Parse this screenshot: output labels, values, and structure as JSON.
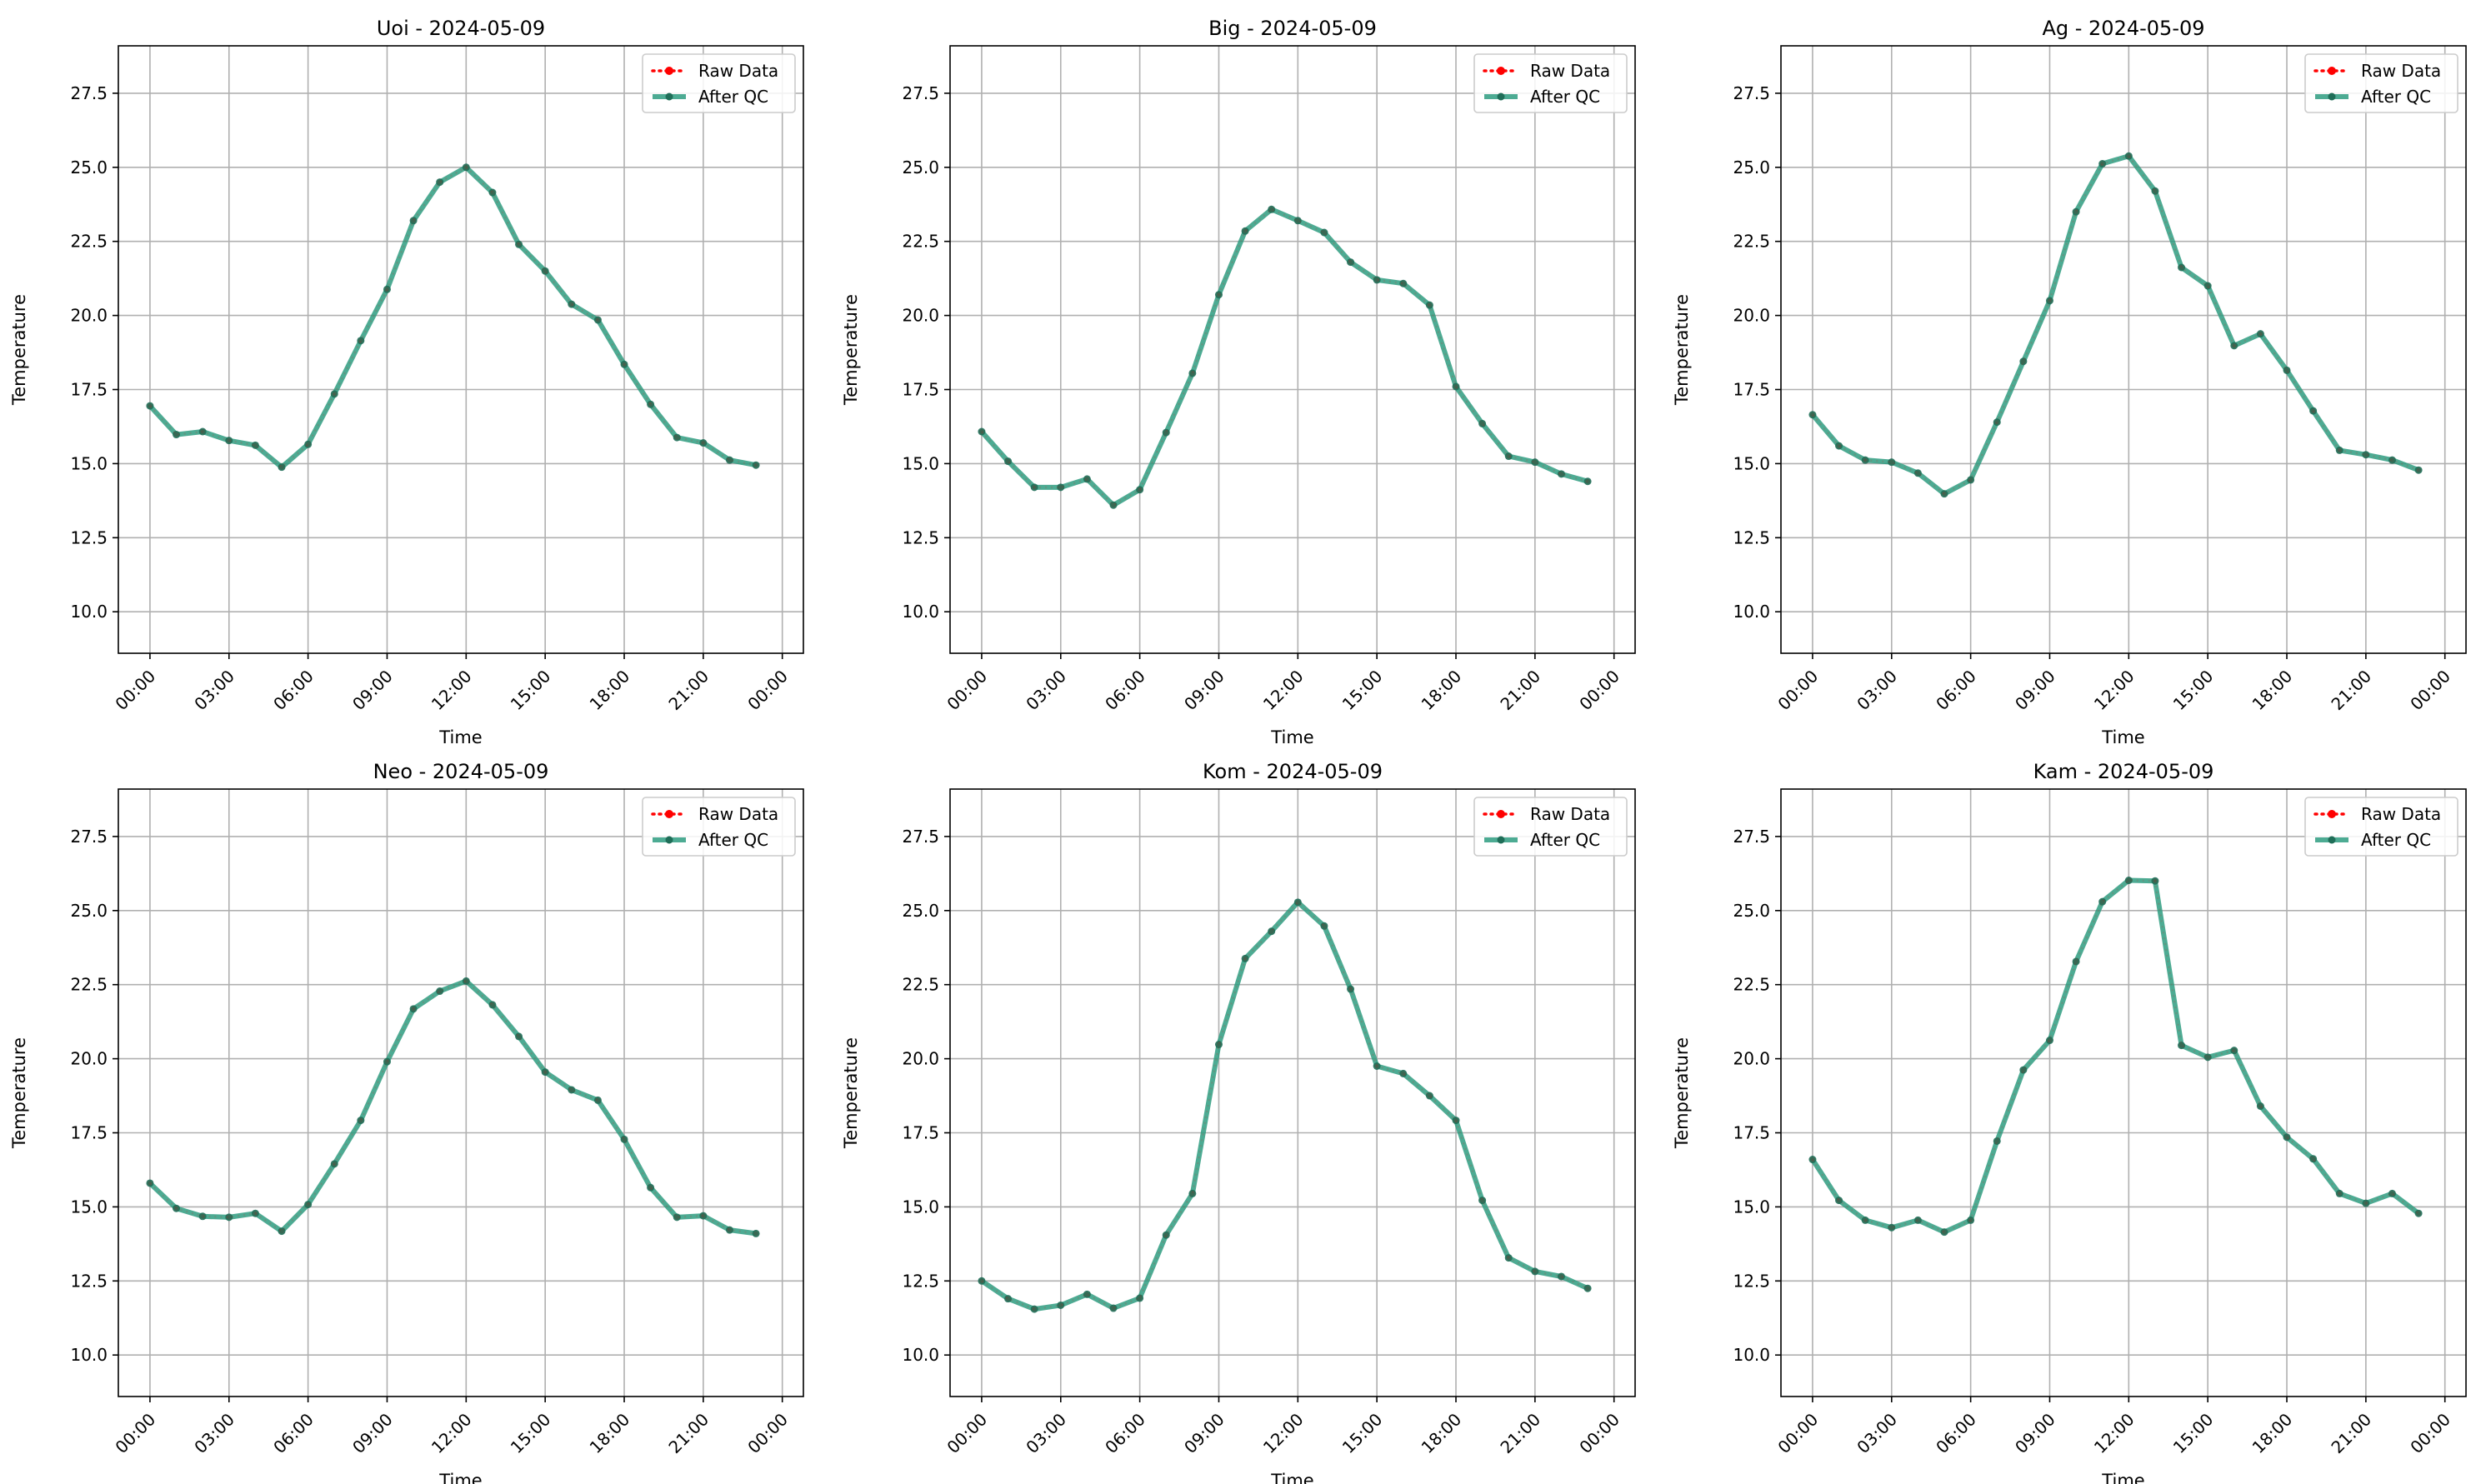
{
  "legend": {
    "raw_label": "Raw Data",
    "qc_label": "After QC",
    "placement": "upper right"
  },
  "colors": {
    "raw": "#ff0000",
    "qc": "#2e9c80",
    "qc_marker": "#1f6e58",
    "grid": "#b0b0b0"
  },
  "chart_data": [
    {
      "type": "line",
      "title": "Uoi - 2024-05-09",
      "xlabel": "Time",
      "ylabel": "Temperature",
      "grid": true,
      "legend": "upper right",
      "ylim": [
        8.6,
        29.1
      ],
      "yticks": [
        "10.0",
        "12.5",
        "15.0",
        "17.5",
        "20.0",
        "22.5",
        "25.0",
        "27.5"
      ],
      "xticks": [
        "00:00",
        "03:00",
        "06:00",
        "09:00",
        "12:00",
        "15:00",
        "18:00",
        "21:00",
        "00:00"
      ],
      "x": [
        "00:00",
        "01:00",
        "02:00",
        "03:00",
        "04:00",
        "05:00",
        "06:00",
        "07:00",
        "08:00",
        "09:00",
        "10:00",
        "11:00",
        "12:00",
        "13:00",
        "14:00",
        "15:00",
        "16:00",
        "17:00",
        "18:00",
        "19:00",
        "20:00",
        "21:00",
        "22:00",
        "23:00"
      ],
      "series": [
        {
          "name": "Raw Data",
          "values": [
            16.95,
            15.98,
            16.08,
            15.78,
            15.62,
            14.88,
            15.65,
            17.35,
            19.15,
            20.88,
            23.2,
            24.5,
            25.0,
            24.15,
            22.4,
            21.5,
            20.38,
            19.85,
            18.35,
            17.0,
            15.88,
            15.7,
            15.12,
            14.95
          ]
        },
        {
          "name": "After QC",
          "values": [
            16.95,
            15.98,
            16.08,
            15.78,
            15.62,
            14.88,
            15.65,
            17.35,
            19.15,
            20.88,
            23.2,
            24.5,
            25.0,
            24.15,
            22.4,
            21.5,
            20.38,
            19.85,
            18.35,
            17.0,
            15.88,
            15.7,
            15.12,
            14.95
          ]
        }
      ]
    },
    {
      "type": "line",
      "title": "Big - 2024-05-09",
      "xlabel": "Time",
      "ylabel": "Temperature",
      "grid": true,
      "legend": "upper right",
      "ylim": [
        8.6,
        29.1
      ],
      "yticks": [
        "10.0",
        "12.5",
        "15.0",
        "17.5",
        "20.0",
        "22.5",
        "25.0",
        "27.5"
      ],
      "xticks": [
        "00:00",
        "03:00",
        "06:00",
        "09:00",
        "12:00",
        "15:00",
        "18:00",
        "21:00",
        "00:00"
      ],
      "x": [
        "00:00",
        "01:00",
        "02:00",
        "03:00",
        "04:00",
        "05:00",
        "06:00",
        "07:00",
        "08:00",
        "09:00",
        "10:00",
        "11:00",
        "12:00",
        "13:00",
        "14:00",
        "15:00",
        "16:00",
        "17:00",
        "18:00",
        "19:00",
        "20:00",
        "21:00",
        "22:00",
        "23:00"
      ],
      "series": [
        {
          "name": "Raw Data",
          "values": [
            16.08,
            15.08,
            14.2,
            14.2,
            14.48,
            13.6,
            14.12,
            16.05,
            18.05,
            20.7,
            22.85,
            23.58,
            23.2,
            22.8,
            21.8,
            21.2,
            21.08,
            20.35,
            17.6,
            16.35,
            15.25,
            15.05,
            14.65,
            14.4
          ]
        },
        {
          "name": "After QC",
          "values": [
            16.08,
            15.08,
            14.2,
            14.2,
            14.48,
            13.6,
            14.12,
            16.05,
            18.05,
            20.7,
            22.85,
            23.58,
            23.2,
            22.8,
            21.8,
            21.2,
            21.08,
            20.35,
            17.6,
            16.35,
            15.25,
            15.05,
            14.65,
            14.4
          ]
        }
      ]
    },
    {
      "type": "line",
      "title": "Ag - 2024-05-09",
      "xlabel": "Time",
      "ylabel": "Temperature",
      "grid": true,
      "legend": "upper right",
      "ylim": [
        8.6,
        29.1
      ],
      "yticks": [
        "10.0",
        "12.5",
        "15.0",
        "17.5",
        "20.0",
        "22.5",
        "25.0",
        "27.5"
      ],
      "xticks": [
        "00:00",
        "03:00",
        "06:00",
        "09:00",
        "12:00",
        "15:00",
        "18:00",
        "21:00",
        "00:00"
      ],
      "x": [
        "00:00",
        "01:00",
        "02:00",
        "03:00",
        "04:00",
        "05:00",
        "06:00",
        "07:00",
        "08:00",
        "09:00",
        "10:00",
        "11:00",
        "12:00",
        "13:00",
        "14:00",
        "15:00",
        "16:00",
        "17:00",
        "18:00",
        "19:00",
        "20:00",
        "21:00",
        "22:00",
        "23:00"
      ],
      "series": [
        {
          "name": "Raw Data",
          "values": [
            16.65,
            15.6,
            15.12,
            15.05,
            14.68,
            13.98,
            14.45,
            16.4,
            18.45,
            20.5,
            23.5,
            25.12,
            25.38,
            24.2,
            21.62,
            21.0,
            18.98,
            19.38,
            18.15,
            16.78,
            15.45,
            15.3,
            15.12,
            14.78
          ]
        },
        {
          "name": "After QC",
          "values": [
            16.65,
            15.6,
            15.12,
            15.05,
            14.68,
            13.98,
            14.45,
            16.4,
            18.45,
            20.5,
            23.5,
            25.12,
            25.38,
            24.2,
            21.62,
            21.0,
            18.98,
            19.38,
            18.15,
            16.78,
            15.45,
            15.3,
            15.12,
            14.78
          ]
        }
      ]
    },
    {
      "type": "line",
      "title": "Neo - 2024-05-09",
      "xlabel": "Time",
      "ylabel": "Temperature",
      "grid": true,
      "legend": "upper right",
      "ylim": [
        8.6,
        29.1
      ],
      "yticks": [
        "10.0",
        "12.5",
        "15.0",
        "17.5",
        "20.0",
        "22.5",
        "25.0",
        "27.5"
      ],
      "xticks": [
        "00:00",
        "03:00",
        "06:00",
        "09:00",
        "12:00",
        "15:00",
        "18:00",
        "21:00",
        "00:00"
      ],
      "x": [
        "00:00",
        "01:00",
        "02:00",
        "03:00",
        "04:00",
        "05:00",
        "06:00",
        "07:00",
        "08:00",
        "09:00",
        "10:00",
        "11:00",
        "12:00",
        "13:00",
        "14:00",
        "15:00",
        "16:00",
        "17:00",
        "18:00",
        "19:00",
        "20:00",
        "21:00",
        "22:00",
        "23:00"
      ],
      "series": [
        {
          "name": "Raw Data",
          "values": [
            15.8,
            14.95,
            14.68,
            14.65,
            14.78,
            14.18,
            15.08,
            16.45,
            17.92,
            19.9,
            21.68,
            22.28,
            22.62,
            21.82,
            20.75,
            19.55,
            18.95,
            18.6,
            17.28,
            15.65,
            14.65,
            14.7,
            14.22,
            14.1
          ]
        },
        {
          "name": "After QC",
          "values": [
            15.8,
            14.95,
            14.68,
            14.65,
            14.78,
            14.18,
            15.08,
            16.45,
            17.92,
            19.9,
            21.68,
            22.28,
            22.62,
            21.82,
            20.75,
            19.55,
            18.95,
            18.6,
            17.28,
            15.65,
            14.65,
            14.7,
            14.22,
            14.1
          ]
        }
      ]
    },
    {
      "type": "line",
      "title": "Kom - 2024-05-09",
      "xlabel": "Time",
      "ylabel": "Temperature",
      "grid": true,
      "legend": "upper right",
      "ylim": [
        8.6,
        29.1
      ],
      "yticks": [
        "10.0",
        "12.5",
        "15.0",
        "17.5",
        "20.0",
        "22.5",
        "25.0",
        "27.5"
      ],
      "xticks": [
        "00:00",
        "03:00",
        "06:00",
        "09:00",
        "12:00",
        "15:00",
        "18:00",
        "21:00",
        "00:00"
      ],
      "x": [
        "00:00",
        "01:00",
        "02:00",
        "03:00",
        "04:00",
        "05:00",
        "06:00",
        "07:00",
        "08:00",
        "09:00",
        "10:00",
        "11:00",
        "12:00",
        "13:00",
        "14:00",
        "15:00",
        "16:00",
        "17:00",
        "18:00",
        "19:00",
        "20:00",
        "21:00",
        "22:00",
        "23:00"
      ],
      "series": [
        {
          "name": "Raw Data",
          "values": [
            12.5,
            11.9,
            11.55,
            11.68,
            12.05,
            11.58,
            11.92,
            14.05,
            15.45,
            20.48,
            23.38,
            24.3,
            25.28,
            24.48,
            22.35,
            19.75,
            19.5,
            18.75,
            17.92,
            15.22,
            13.28,
            12.82,
            12.65,
            12.25
          ]
        },
        {
          "name": "After QC",
          "values": [
            12.5,
            11.9,
            11.55,
            11.68,
            12.05,
            11.58,
            11.92,
            14.05,
            15.45,
            20.48,
            23.38,
            24.3,
            25.28,
            24.48,
            22.35,
            19.75,
            19.5,
            18.75,
            17.92,
            15.22,
            13.28,
            12.82,
            12.65,
            12.25
          ]
        }
      ]
    },
    {
      "type": "line",
      "title": "Kam - 2024-05-09",
      "xlabel": "Time",
      "ylabel": "Temperature",
      "grid": true,
      "legend": "upper right",
      "ylim": [
        8.6,
        29.1
      ],
      "yticks": [
        "10.0",
        "12.5",
        "15.0",
        "17.5",
        "20.0",
        "22.5",
        "25.0",
        "27.5"
      ],
      "xticks": [
        "00:00",
        "03:00",
        "06:00",
        "09:00",
        "12:00",
        "15:00",
        "18:00",
        "21:00",
        "00:00"
      ],
      "x": [
        "00:00",
        "01:00",
        "02:00",
        "03:00",
        "04:00",
        "05:00",
        "06:00",
        "07:00",
        "08:00",
        "09:00",
        "10:00",
        "11:00",
        "12:00",
        "13:00",
        "14:00",
        "15:00",
        "16:00",
        "17:00",
        "18:00",
        "19:00",
        "20:00",
        "21:00",
        "22:00",
        "23:00"
      ],
      "series": [
        {
          "name": "Raw Data",
          "values": [
            16.6,
            15.22,
            14.55,
            14.3,
            14.55,
            14.15,
            14.55,
            17.22,
            19.62,
            20.62,
            23.28,
            25.3,
            26.02,
            26.0,
            20.45,
            20.05,
            20.28,
            18.4,
            17.35,
            16.62,
            15.45,
            15.12,
            15.45,
            14.78
          ]
        },
        {
          "name": "After QC",
          "values": [
            16.6,
            15.22,
            14.55,
            14.3,
            14.55,
            14.15,
            14.55,
            17.22,
            19.62,
            20.62,
            23.28,
            25.3,
            26.02,
            26.0,
            20.45,
            20.05,
            20.28,
            18.4,
            17.35,
            16.62,
            15.45,
            15.12,
            15.45,
            14.78
          ]
        }
      ]
    }
  ]
}
